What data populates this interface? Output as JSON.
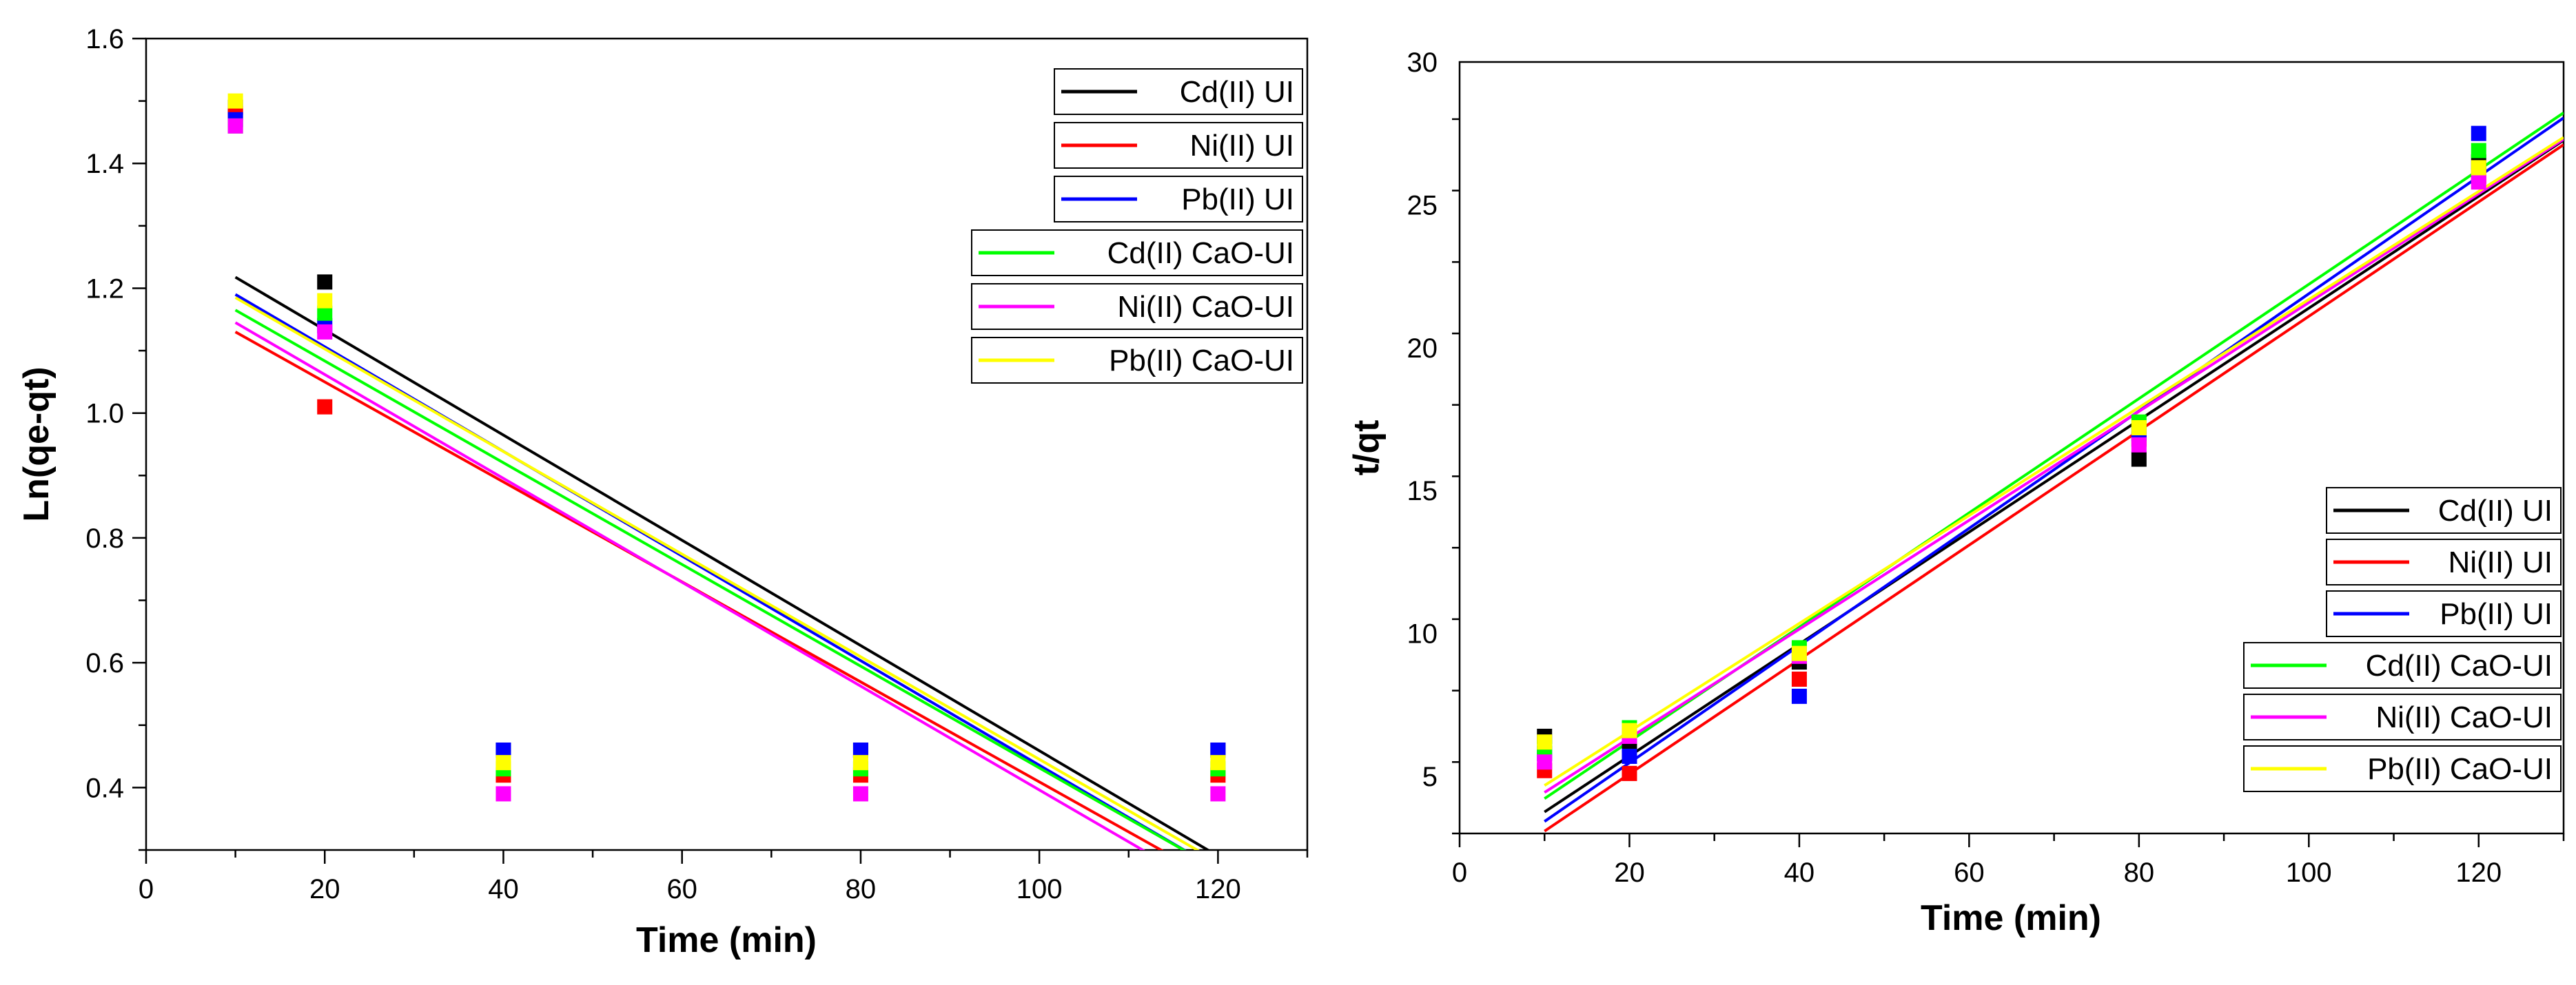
{
  "chart_data": [
    {
      "type": "scatter",
      "title": "",
      "xlabel": "Time (min)",
      "ylabel": "Ln(qe-qt)",
      "xlim": [
        0,
        130
      ],
      "ylim": [
        0.3,
        1.6
      ],
      "x_ticks": [
        0,
        20,
        40,
        60,
        80,
        100,
        120
      ],
      "y_ticks": [
        0.4,
        0.6,
        0.8,
        1.0,
        1.2,
        1.4,
        1.6
      ],
      "y_tick_labels": [
        "0.4",
        "0.6",
        "0.8",
        "1.0",
        "1.2",
        "1.4",
        "1.6"
      ],
      "grid": false,
      "legend_position": "top-right",
      "x": [
        10,
        20,
        40,
        80,
        120
      ],
      "series": [
        {
          "name": "Cd(II) UI",
          "color": "#000000",
          "values": [
            1.49,
            1.21,
            0.46,
            0.46,
            0.46
          ],
          "fit": {
            "slope": -0.00843,
            "intercept": 1.302
          }
        },
        {
          "name": "Ni(II) UI",
          "color": "#ff0000",
          "values": [
            1.48,
            1.01,
            0.42,
            0.42,
            0.42
          ],
          "fit": {
            "slope": -0.00801,
            "intercept": 1.2101
          }
        },
        {
          "name": "Pb(II) UI",
          "color": "#0000ff",
          "values": [
            1.47,
            1.14,
            0.46,
            0.46,
            0.46
          ],
          "fit": {
            "slope": -0.00838,
            "intercept": 1.2738
          }
        },
        {
          "name": "Cd(II) CaO-UI",
          "color": "#00ff00",
          "values": [
            1.46,
            1.16,
            0.43,
            0.43,
            0.43
          ],
          "fit": {
            "slope": -0.00815,
            "intercept": 1.2465
          }
        },
        {
          "name": "Ni(II) CaO-UI",
          "color": "#ff00ff",
          "values": [
            1.46,
            1.13,
            0.39,
            0.39,
            0.39
          ],
          "fit": {
            "slope": -0.00832,
            "intercept": 1.2282
          }
        },
        {
          "name": "Pb(II) CaO-UI",
          "color": "#ffff00",
          "values": [
            1.5,
            1.18,
            0.44,
            0.44,
            0.44
          ],
          "fit": {
            "slope": -0.00822,
            "intercept": 1.2672
          }
        }
      ]
    },
    {
      "type": "scatter",
      "title": "",
      "xlabel": "Time (min)",
      "ylabel": "t/qt",
      "xlim": [
        0,
        130
      ],
      "ylim": [
        3,
        30
      ],
      "x_ticks": [
        0,
        20,
        40,
        60,
        80,
        100,
        120
      ],
      "y_ticks": [
        5,
        10,
        15,
        20,
        25,
        30
      ],
      "y_tick_labels": [
        "5",
        "10",
        "15",
        "20",
        "25",
        "30"
      ],
      "grid": false,
      "legend_position": "bottom-right",
      "x": [
        10,
        20,
        40,
        80,
        120
      ],
      "series": [
        {
          "name": "Cd(II) UI",
          "color": "#000000",
          "values": [
            6.4,
            6.1,
            9.0,
            16.1,
            26.5
          ],
          "fit": {
            "slope": 0.1959,
            "intercept": 1.7941
          }
        },
        {
          "name": "Ni(II) UI",
          "color": "#ff0000",
          "values": [
            5.2,
            5.1,
            8.4,
            16.8,
            26.0
          ],
          "fit": {
            "slope": 0.2002,
            "intercept": 1.08
          }
        },
        {
          "name": "Pb(II) UI",
          "color": "#0000ff",
          "values": [
            5.8,
            5.7,
            7.8,
            17.0,
            27.5
          ],
          "fit": {
            "slope": 0.2052,
            "intercept": 1.368
          }
        },
        {
          "name": "Cd(II) CaO-UI",
          "color": "#00ff00",
          "values": [
            6.0,
            6.7,
            9.5,
            17.4,
            26.9
          ],
          "fit": {
            "slope": 0.2,
            "intercept": 2.22
          }
        },
        {
          "name": "Ni(II) CaO-UI",
          "color": "#ff00ff",
          "values": [
            5.5,
            6.4,
            9.2,
            16.6,
            25.8
          ],
          "fit": {
            "slope": 0.1905,
            "intercept": 2.53
          }
        },
        {
          "name": "Pb(II) CaO-UI",
          "color": "#ffff00",
          "values": [
            6.2,
            6.6,
            9.3,
            17.2,
            26.3
          ],
          "fit": {
            "slope": 0.189,
            "intercept": 2.79
          }
        }
      ]
    }
  ]
}
